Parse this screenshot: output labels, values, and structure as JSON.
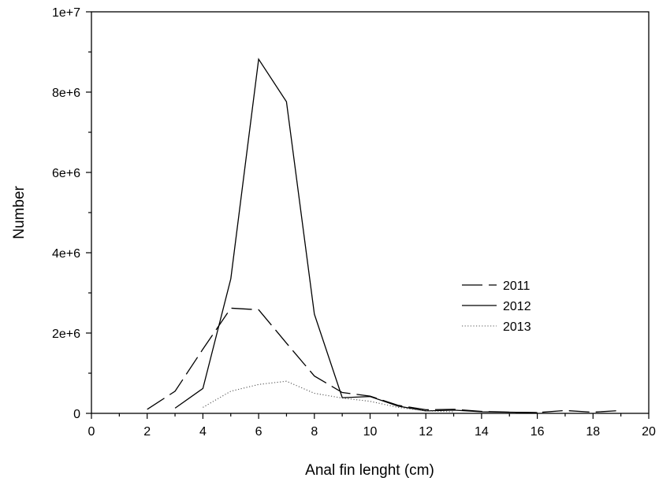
{
  "chart_data": {
    "type": "line",
    "title": "",
    "xlabel": "Anal fin lenght (cm)",
    "ylabel": "Number",
    "xlim": [
      0,
      20
    ],
    "ylim": [
      0,
      10000000
    ],
    "x_ticks": [
      0,
      2,
      4,
      6,
      8,
      10,
      12,
      14,
      16,
      18,
      20
    ],
    "x_tick_labels": [
      "0",
      "2",
      "4",
      "6",
      "8",
      "10",
      "12",
      "14",
      "16",
      "18",
      "20"
    ],
    "y_ticks": [
      0,
      2000000,
      4000000,
      6000000,
      8000000,
      10000000
    ],
    "y_tick_labels": [
      "0",
      "2e+6",
      "4e+6",
      "6e+6",
      "8e+6",
      "1e+7"
    ],
    "grid": false,
    "legend_position": "right",
    "series": [
      {
        "name": "2011",
        "line_style": "long-dash",
        "color": "#000000",
        "x": [
          2,
          3,
          4,
          5,
          6,
          7,
          8,
          9,
          10,
          11,
          12,
          13,
          14,
          15,
          16,
          17,
          18,
          19
        ],
        "values": [
          100000,
          550000,
          1600000,
          2620000,
          2580000,
          1750000,
          930000,
          520000,
          430000,
          200000,
          90000,
          100000,
          50000,
          30000,
          20000,
          70000,
          30000,
          70000
        ]
      },
      {
        "name": "2012",
        "line_style": "solid",
        "color": "#000000",
        "x": [
          3,
          4,
          5,
          6,
          7,
          8,
          9,
          10,
          11,
          12,
          13,
          14,
          15,
          16
        ],
        "values": [
          130000,
          620000,
          3350000,
          8820000,
          7760000,
          2470000,
          390000,
          420000,
          180000,
          60000,
          80000,
          40000,
          30000,
          20000
        ]
      },
      {
        "name": "2013",
        "line_style": "dotted",
        "color": "#555555",
        "x": [
          4,
          5,
          6,
          7,
          8,
          9,
          10,
          11,
          12,
          13
        ],
        "values": [
          150000,
          550000,
          720000,
          800000,
          500000,
          380000,
          300000,
          150000,
          60000,
          40000
        ]
      }
    ]
  }
}
